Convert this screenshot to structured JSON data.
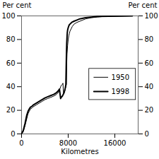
{
  "chart_data": {
    "type": "line",
    "xlabel": "Kilometres",
    "ylabel": "Per cent",
    "y2label": "Per cent",
    "xlim": [
      0,
      20000
    ],
    "xticks": [
      0,
      8000,
      16000
    ],
    "ylim": [
      0,
      100
    ],
    "yticks": [
      0,
      20,
      40,
      60,
      80,
      100
    ],
    "y2lim": [
      0,
      100
    ],
    "y2ticks": [
      0,
      20,
      40,
      60,
      80,
      100
    ],
    "legend": "right",
    "series": [
      {
        "name": "1950",
        "color": "#000000",
        "x": [
          0,
          300,
          600,
          900,
          1100,
          1300,
          1500,
          1800,
          2000,
          2500,
          3000,
          3500,
          4000,
          4500,
          5000,
          5500,
          6000,
          6300,
          6500,
          6700,
          6800,
          7000,
          7100,
          7200,
          7300,
          7400,
          7500,
          7600,
          7700,
          7750,
          7800,
          7900,
          8000,
          8100,
          8200,
          8300,
          8500,
          8700,
          9000,
          9500,
          10000,
          10500,
          11000,
          12000,
          13000,
          14000,
          19000
        ],
        "values": [
          0,
          2,
          7,
          13,
          17,
          19,
          21,
          22,
          23,
          24.5,
          26,
          27.5,
          29,
          30,
          31,
          32,
          33.5,
          35,
          37,
          40,
          41,
          42,
          43,
          34,
          35,
          36,
          38,
          40,
          42,
          60,
          68,
          75,
          80,
          83,
          85,
          87,
          89,
          91,
          93,
          94.5,
          95.5,
          96.5,
          97.5,
          98.5,
          99,
          99.5,
          100
        ]
      },
      {
        "name": "1998",
        "color": "#000000",
        "x": [
          0,
          300,
          600,
          900,
          1100,
          1300,
          1500,
          1800,
          2000,
          2500,
          3000,
          3500,
          4000,
          4500,
          5000,
          5500,
          6000,
          6300,
          6500,
          6700,
          6800,
          7000,
          7100,
          7200,
          7300,
          7400,
          7500,
          7600,
          7650,
          7700,
          7750,
          7800,
          7850,
          7900,
          8000,
          8100,
          8200,
          8400,
          8600,
          9000,
          9500,
          10000,
          11000,
          12000,
          13000,
          19000
        ],
        "values": [
          0,
          3,
          9,
          16,
          19,
          21,
          22.5,
          23.5,
          24.5,
          26,
          27.5,
          29,
          30.5,
          31.5,
          32.5,
          33.5,
          35,
          36.5,
          38,
          30,
          31,
          32,
          33,
          34,
          35,
          37,
          39,
          42,
          55,
          68,
          77,
          82,
          86,
          88,
          90,
          91.5,
          92.5,
          93.5,
          94.5,
          95.5,
          96.5,
          97.5,
          98.5,
          99,
          99.5,
          100
        ]
      }
    ]
  }
}
